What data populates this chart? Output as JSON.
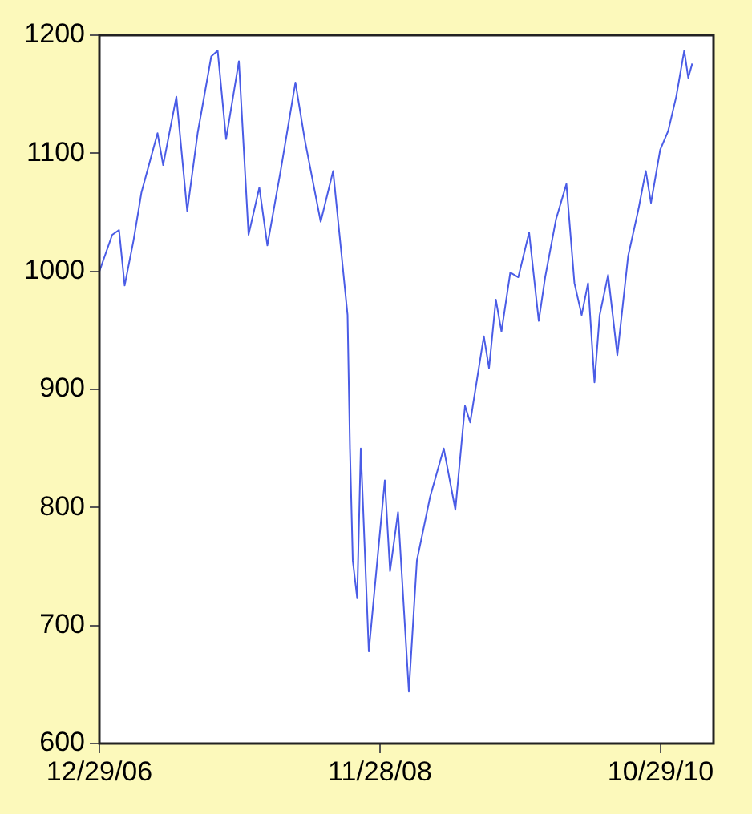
{
  "chart_data": {
    "type": "line",
    "grid": false,
    "legend": false,
    "line_style": "solid",
    "marker": "none",
    "x": [
      "2006-12-29",
      "2007-01-30",
      "2007-02-16",
      "2007-03-02",
      "2007-03-24",
      "2007-04-13",
      "2007-05-23",
      "2007-06-06",
      "2007-07-09",
      "2007-08-05",
      "2007-08-31",
      "2007-10-04",
      "2007-10-20",
      "2007-11-10",
      "2007-12-12",
      "2008-01-05",
      "2008-02-01",
      "2008-02-21",
      "2008-03-25",
      "2008-05-01",
      "2008-05-24",
      "2008-07-03",
      "2008-08-03",
      "2008-08-19",
      "2008-09-08",
      "2008-09-14",
      "2008-09-21",
      "2008-10-02",
      "2008-10-11",
      "2008-10-31",
      "2008-12-10",
      "2008-12-23",
      "2009-01-12",
      "2009-02-08",
      "2009-02-28",
      "2009-04-02",
      "2009-05-06",
      "2009-06-04",
      "2009-06-28",
      "2009-07-11",
      "2009-08-14",
      "2009-08-27",
      "2009-09-13",
      "2009-09-27",
      "2009-10-19",
      "2009-11-08",
      "2009-12-05",
      "2009-12-29",
      "2010-01-14",
      "2010-02-10",
      "2010-03-08",
      "2010-03-28",
      "2010-04-15",
      "2010-05-01",
      "2010-05-17",
      "2010-05-30",
      "2010-06-20",
      "2010-07-13",
      "2010-08-09",
      "2010-09-04",
      "2010-09-22",
      "2010-10-05",
      "2010-10-28",
      "2010-11-17",
      "2010-12-07",
      "2010-12-27",
      "2011-01-06",
      "2011-01-16"
    ],
    "series": [
      {
        "color": "#4a5ce6",
        "values": [
          1000,
          1031,
          1035,
          988,
          1026,
          1067,
          1117,
          1090,
          1148,
          1051,
          1117,
          1182,
          1187,
          1112,
          1178,
          1031,
          1071,
          1022,
          1085,
          1160,
          1112,
          1042,
          1085,
          1031,
          963,
          850,
          755,
          723,
          850,
          678,
          823,
          746,
          796,
          644,
          755,
          809,
          850,
          798,
          886,
          872,
          945,
          918,
          976,
          949,
          999,
          995,
          1033,
          958,
          995,
          1044,
          1074,
          990,
          963,
          990,
          906,
          963,
          997,
          929,
          1013,
          1053,
          1085,
          1058,
          1103,
          1119,
          1148,
          1187,
          1164,
          1176
        ]
      }
    ],
    "xlim": [
      "2006-12-29",
      "2011-03-10"
    ],
    "xticks": [
      {
        "value": "2006-12-29",
        "label": "12/29/06"
      },
      {
        "value": "2008-11-28",
        "label": "11/28/08"
      },
      {
        "value": "2010-10-29",
        "label": "10/29/10"
      }
    ],
    "ylim": [
      600,
      1200
    ],
    "yticks": [
      600,
      700,
      800,
      900,
      1000,
      1100,
      1200
    ]
  }
}
